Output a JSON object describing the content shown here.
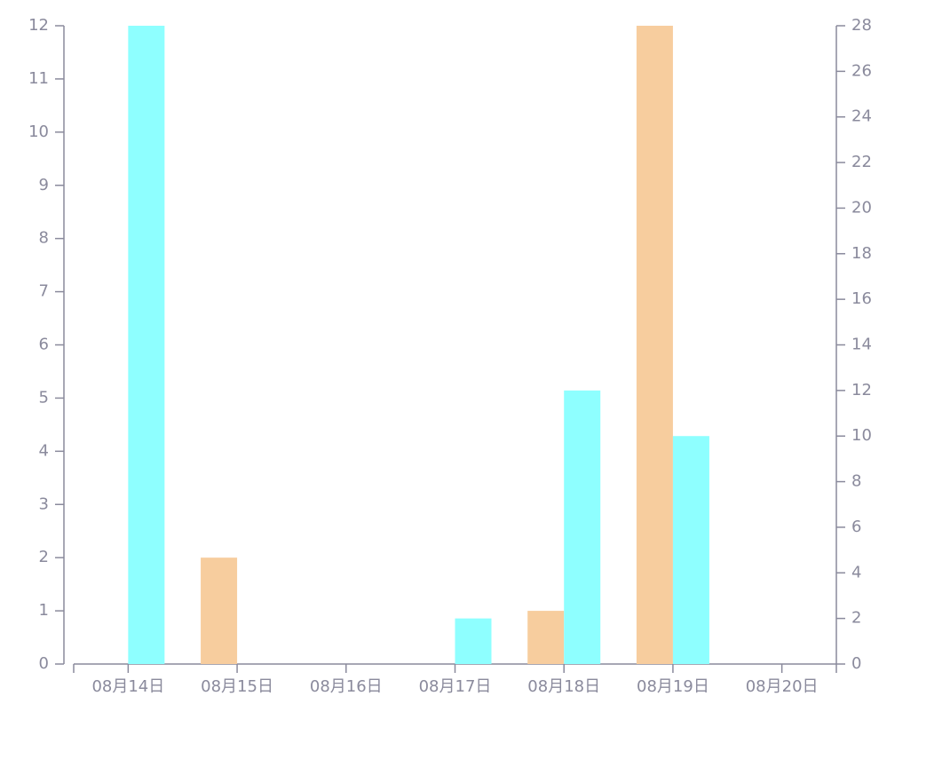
{
  "chart_data": {
    "type": "bar",
    "categories": [
      "08月14日",
      "08月15日",
      "08月16日",
      "08月17日",
      "08月18日",
      "08月19日",
      "08月20日"
    ],
    "series": [
      {
        "color": "#f7cd9e",
        "values": [
          0,
          2,
          0,
          0,
          1,
          12,
          0
        ]
      },
      {
        "color": "#8effff",
        "axis": "y2",
        "values": [
          28,
          0,
          0,
          2,
          12,
          10,
          0
        ]
      }
    ],
    "ylim": [
      0,
      12
    ],
    "yticks": [
      0,
      1,
      2,
      3,
      4,
      5,
      6,
      7,
      8,
      9,
      10,
      11,
      12
    ],
    "y2lim": [
      0,
      28
    ],
    "y2ticks": [
      0,
      2,
      4,
      6,
      8,
      10,
      12,
      14,
      16,
      18,
      20,
      22,
      24,
      26,
      28
    ]
  }
}
